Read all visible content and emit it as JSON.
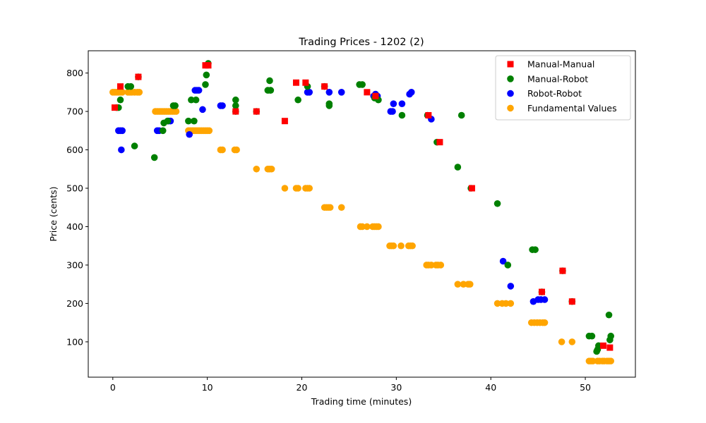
{
  "chart_data": {
    "type": "scatter",
    "title": "Trading Prices - 1202 (2)",
    "xlabel": "Trading time (minutes)",
    "ylabel": "Price (cents)",
    "xlim": [
      -2.6,
      55.3
    ],
    "ylim": [
      8,
      858
    ],
    "xticks": [
      0,
      10,
      20,
      30,
      40,
      50
    ],
    "yticks": [
      100,
      200,
      300,
      400,
      500,
      600,
      700,
      800
    ],
    "grid": false,
    "legend_position": "top-right",
    "series": [
      {
        "name": "Fundamental Values",
        "color": "#ffa500",
        "marker": "circle",
        "points": [
          [
            0.0,
            750
          ],
          [
            0.2,
            750
          ],
          [
            0.4,
            750
          ],
          [
            0.6,
            750
          ],
          [
            0.8,
            750
          ],
          [
            1.0,
            750
          ],
          [
            1.6,
            750
          ],
          [
            1.8,
            750
          ],
          [
            2.0,
            750
          ],
          [
            2.3,
            750
          ],
          [
            2.6,
            750
          ],
          [
            2.8,
            750
          ],
          [
            4.5,
            700
          ],
          [
            4.7,
            700
          ],
          [
            4.9,
            700
          ],
          [
            5.1,
            700
          ],
          [
            5.3,
            700
          ],
          [
            5.5,
            700
          ],
          [
            5.7,
            700
          ],
          [
            5.9,
            700
          ],
          [
            6.1,
            700
          ],
          [
            6.3,
            700
          ],
          [
            6.5,
            700
          ],
          [
            6.7,
            700
          ],
          [
            8.0,
            650
          ],
          [
            8.2,
            650
          ],
          [
            8.4,
            650
          ],
          [
            8.6,
            650
          ],
          [
            8.8,
            650
          ],
          [
            9.0,
            650
          ],
          [
            9.2,
            650
          ],
          [
            9.4,
            650
          ],
          [
            9.6,
            650
          ],
          [
            9.8,
            650
          ],
          [
            10.0,
            650
          ],
          [
            10.2,
            650
          ],
          [
            11.4,
            600
          ],
          [
            11.6,
            600
          ],
          [
            12.9,
            600
          ],
          [
            13.1,
            600
          ],
          [
            15.2,
            550
          ],
          [
            16.4,
            550
          ],
          [
            16.6,
            550
          ],
          [
            16.8,
            550
          ],
          [
            18.2,
            500
          ],
          [
            19.4,
            500
          ],
          [
            19.6,
            500
          ],
          [
            20.4,
            500
          ],
          [
            20.6,
            500
          ],
          [
            20.8,
            500
          ],
          [
            22.4,
            450
          ],
          [
            22.6,
            450
          ],
          [
            22.8,
            450
          ],
          [
            23.0,
            450
          ],
          [
            24.2,
            450
          ],
          [
            26.2,
            400
          ],
          [
            26.4,
            400
          ],
          [
            26.9,
            400
          ],
          [
            27.5,
            400
          ],
          [
            27.7,
            400
          ],
          [
            27.9,
            400
          ],
          [
            28.1,
            400
          ],
          [
            29.3,
            350
          ],
          [
            29.5,
            350
          ],
          [
            29.7,
            350
          ],
          [
            30.5,
            350
          ],
          [
            31.3,
            350
          ],
          [
            31.5,
            350
          ],
          [
            31.7,
            350
          ],
          [
            33.2,
            300
          ],
          [
            33.4,
            300
          ],
          [
            33.7,
            300
          ],
          [
            34.2,
            300
          ],
          [
            34.4,
            300
          ],
          [
            34.7,
            300
          ],
          [
            36.5,
            250
          ],
          [
            37.1,
            250
          ],
          [
            37.6,
            250
          ],
          [
            37.8,
            250
          ],
          [
            40.7,
            200
          ],
          [
            41.2,
            200
          ],
          [
            41.6,
            200
          ],
          [
            42.1,
            200
          ],
          [
            44.3,
            150
          ],
          [
            44.6,
            150
          ],
          [
            44.9,
            150
          ],
          [
            45.2,
            150
          ],
          [
            45.5,
            150
          ],
          [
            45.7,
            150
          ],
          [
            47.5,
            100
          ],
          [
            48.6,
            100
          ],
          [
            50.4,
            50
          ],
          [
            50.6,
            50
          ],
          [
            50.8,
            50
          ],
          [
            51.3,
            50
          ],
          [
            51.5,
            50
          ],
          [
            51.8,
            50
          ],
          [
            52.0,
            50
          ],
          [
            52.3,
            50
          ],
          [
            52.5,
            50
          ],
          [
            52.7,
            50
          ]
        ]
      },
      {
        "name": "Robot-Robot",
        "color": "#0000ff",
        "marker": "circle",
        "points": [
          [
            0.6,
            650
          ],
          [
            0.8,
            650
          ],
          [
            1.0,
            650
          ],
          [
            0.9,
            600
          ],
          [
            4.7,
            650
          ],
          [
            4.9,
            650
          ],
          [
            5.9,
            675
          ],
          [
            6.1,
            675
          ],
          [
            8.1,
            640
          ],
          [
            8.7,
            755
          ],
          [
            8.9,
            755
          ],
          [
            9.1,
            755
          ],
          [
            9.5,
            705
          ],
          [
            11.4,
            715
          ],
          [
            11.6,
            715
          ],
          [
            20.6,
            750
          ],
          [
            20.8,
            750
          ],
          [
            22.9,
            750
          ],
          [
            24.2,
            750
          ],
          [
            27.6,
            740
          ],
          [
            27.8,
            745
          ],
          [
            28.0,
            740
          ],
          [
            29.4,
            700
          ],
          [
            29.6,
            700
          ],
          [
            29.7,
            720
          ],
          [
            30.6,
            720
          ],
          [
            31.4,
            745
          ],
          [
            31.6,
            750
          ],
          [
            33.7,
            680
          ],
          [
            41.3,
            310
          ],
          [
            42.1,
            245
          ],
          [
            44.5,
            205
          ],
          [
            45.0,
            210
          ],
          [
            45.3,
            210
          ],
          [
            45.7,
            210
          ]
        ]
      },
      {
        "name": "Manual-Robot",
        "color": "#008000",
        "marker": "circle",
        "points": [
          [
            0.4,
            710
          ],
          [
            0.6,
            710
          ],
          [
            0.8,
            730
          ],
          [
            1.6,
            765
          ],
          [
            1.9,
            765
          ],
          [
            2.3,
            610
          ],
          [
            2.7,
            790
          ],
          [
            4.4,
            580
          ],
          [
            5.3,
            650
          ],
          [
            5.4,
            670
          ],
          [
            5.8,
            675
          ],
          [
            6.4,
            715
          ],
          [
            6.6,
            715
          ],
          [
            8.0,
            675
          ],
          [
            8.3,
            730
          ],
          [
            8.6,
            675
          ],
          [
            8.8,
            730
          ],
          [
            9.8,
            770
          ],
          [
            9.9,
            795
          ],
          [
            10.1,
            825
          ],
          [
            13.0,
            730
          ],
          [
            13.0,
            700
          ],
          [
            13.0,
            715
          ],
          [
            15.2,
            700
          ],
          [
            16.4,
            755
          ],
          [
            16.6,
            780
          ],
          [
            16.7,
            755
          ],
          [
            19.6,
            730
          ],
          [
            20.6,
            765
          ],
          [
            22.4,
            765
          ],
          [
            22.9,
            720
          ],
          [
            22.9,
            715
          ],
          [
            26.1,
            770
          ],
          [
            26.4,
            770
          ],
          [
            27.7,
            735
          ],
          [
            28.1,
            730
          ],
          [
            30.6,
            690
          ],
          [
            33.3,
            690
          ],
          [
            34.3,
            620
          ],
          [
            36.5,
            555
          ],
          [
            36.9,
            690
          ],
          [
            37.9,
            500
          ],
          [
            40.7,
            460
          ],
          [
            41.8,
            300
          ],
          [
            44.4,
            340
          ],
          [
            44.7,
            340
          ],
          [
            45.4,
            230
          ],
          [
            47.6,
            285
          ],
          [
            48.6,
            205
          ],
          [
            50.4,
            115
          ],
          [
            50.7,
            115
          ],
          [
            51.2,
            75
          ],
          [
            51.3,
            80
          ],
          [
            51.4,
            90
          ],
          [
            52.5,
            170
          ],
          [
            52.6,
            105
          ],
          [
            52.7,
            115
          ]
        ]
      },
      {
        "name": "Manual-Manual",
        "color": "#ff0000",
        "marker": "square",
        "points": [
          [
            0.2,
            710
          ],
          [
            0.8,
            765
          ],
          [
            2.7,
            790
          ],
          [
            9.8,
            820
          ],
          [
            10.1,
            820
          ],
          [
            13.0,
            700
          ],
          [
            15.2,
            700
          ],
          [
            18.2,
            675
          ],
          [
            19.4,
            775
          ],
          [
            20.4,
            775
          ],
          [
            22.4,
            765
          ],
          [
            26.9,
            750
          ],
          [
            27.8,
            740
          ],
          [
            33.4,
            690
          ],
          [
            34.6,
            620
          ],
          [
            38.0,
            500
          ],
          [
            45.4,
            230
          ],
          [
            47.6,
            285
          ],
          [
            48.6,
            205
          ],
          [
            51.9,
            90
          ],
          [
            52.6,
            85
          ]
        ]
      }
    ]
  }
}
